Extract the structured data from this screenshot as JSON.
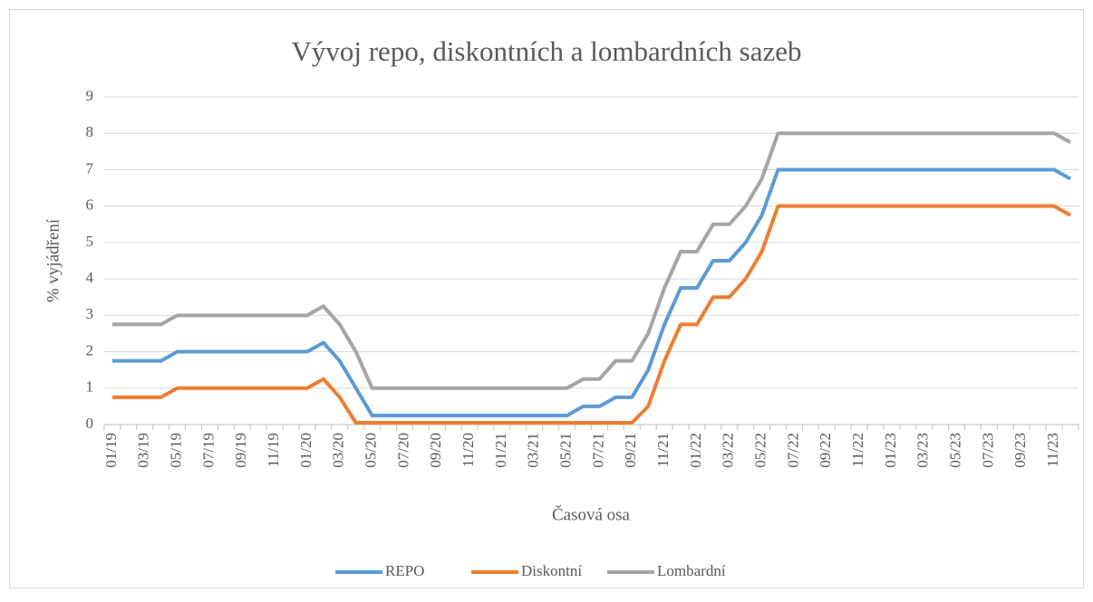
{
  "chart_data": {
    "type": "line",
    "title": "Vývoj repo, diskontních a lombardních sazeb",
    "xlabel": "Časová osa",
    "ylabel": "% vyjádření",
    "categories": [
      "01/19",
      null,
      "03/19",
      null,
      "05/19",
      null,
      "07/19",
      null,
      "09/19",
      null,
      "11/19",
      null,
      "01/20",
      null,
      "03/20",
      null,
      "05/20",
      null,
      "07/20",
      null,
      "09/20",
      null,
      "11/20",
      null,
      "01/21",
      null,
      "03/21",
      null,
      "05/21",
      null,
      "07/21",
      null,
      "09/21",
      null,
      "11/21",
      null,
      "01/22",
      null,
      "03/22",
      null,
      "05/22",
      null,
      "07/22",
      null,
      "09/22",
      null,
      "11/22",
      null,
      "01/23",
      null,
      "03/23",
      null,
      "05/23",
      null,
      "07/23",
      null,
      "09/23",
      null,
      "11/23",
      null
    ],
    "series": [
      {
        "name": "REPO",
        "color": "#5b9bd5",
        "values": [
          1.75,
          1.75,
          1.75,
          1.75,
          2,
          2,
          2,
          2,
          2,
          2,
          2,
          2,
          2,
          2.25,
          1.75,
          1,
          0.25,
          0.25,
          0.25,
          0.25,
          0.25,
          0.25,
          0.25,
          0.25,
          0.25,
          0.25,
          0.25,
          0.25,
          0.25,
          0.5,
          0.5,
          0.75,
          0.75,
          1.5,
          2.75,
          3.75,
          3.75,
          4.5,
          4.5,
          5,
          5.75,
          7,
          7,
          7,
          7,
          7,
          7,
          7,
          7,
          7,
          7,
          7,
          7,
          7,
          7,
          7,
          7,
          7,
          7,
          6.75
        ]
      },
      {
        "name": "Diskontní",
        "color": "#ed7d31",
        "values": [
          0.75,
          0.75,
          0.75,
          0.75,
          1,
          1,
          1,
          1,
          1,
          1,
          1,
          1,
          1,
          1.25,
          0.75,
          0.05,
          0.05,
          0.05,
          0.05,
          0.05,
          0.05,
          0.05,
          0.05,
          0.05,
          0.05,
          0.05,
          0.05,
          0.05,
          0.05,
          0.05,
          0.05,
          0.05,
          0.05,
          0.5,
          1.75,
          2.75,
          2.75,
          3.5,
          3.5,
          4,
          4.75,
          6,
          6,
          6,
          6,
          6,
          6,
          6,
          6,
          6,
          6,
          6,
          6,
          6,
          6,
          6,
          6,
          6,
          6,
          5.75
        ]
      },
      {
        "name": "Lombardní",
        "color": "#a5a5a5",
        "values": [
          2.75,
          2.75,
          2.75,
          2.75,
          3,
          3,
          3,
          3,
          3,
          3,
          3,
          3,
          3,
          3.25,
          2.75,
          2,
          1,
          1,
          1,
          1,
          1,
          1,
          1,
          1,
          1,
          1,
          1,
          1,
          1,
          1.25,
          1.25,
          1.75,
          1.75,
          2.5,
          3.75,
          4.75,
          4.75,
          5.5,
          5.5,
          6,
          6.75,
          8,
          8,
          8,
          8,
          8,
          8,
          8,
          8,
          8,
          8,
          8,
          8,
          8,
          8,
          8,
          8,
          8,
          8,
          7.75
        ]
      }
    ],
    "ylim": [
      0,
      9
    ],
    "yticks": [
      0,
      1,
      2,
      3,
      4,
      5,
      6,
      7,
      8,
      9
    ],
    "grid": true,
    "legend": "bottom"
  }
}
